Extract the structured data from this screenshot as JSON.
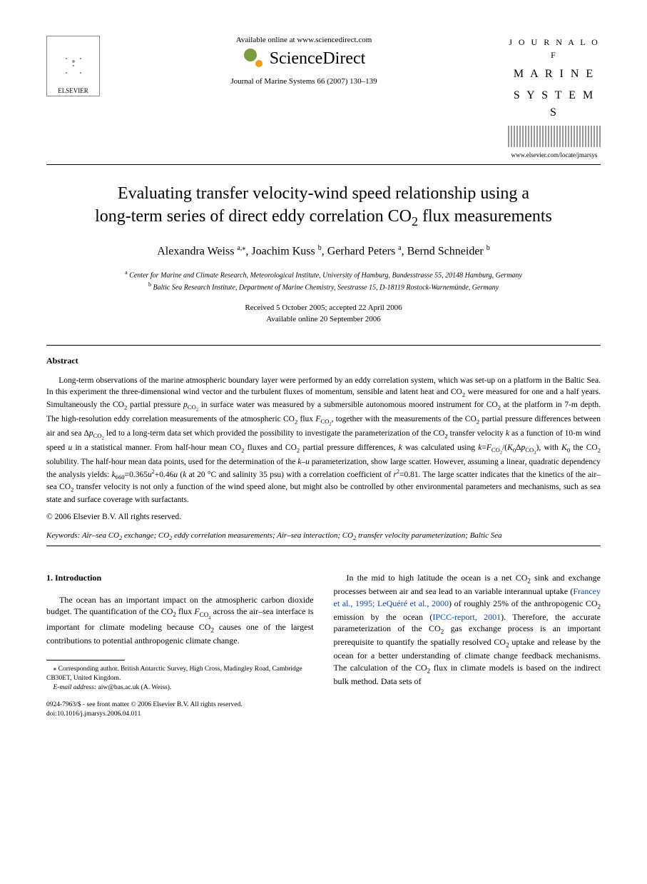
{
  "header": {
    "elsevier_label": "ELSEVIER",
    "available_online": "Available online at www.sciencedirect.com",
    "sd_brand": "ScienceDirect",
    "journal_ref": "Journal of Marine Systems 66 (2007) 130–139",
    "journal_name_l1": "J O U R N A L  O F",
    "journal_name_l2": "M A R I N E",
    "journal_name_l3": "S Y S T E M S",
    "journal_url": "www.elsevier.com/locate/jmarsys"
  },
  "title_l1": "Evaluating transfer velocity-wind speed relationship using a",
  "title_l2": "long-term series of direct eddy correlation CO",
  "title_l2_sub": "2",
  "title_l2_end": " flux measurements",
  "authors": {
    "a1": "Alexandra Weiss",
    "a1_sup": "a,",
    "a1_star": "⁎",
    "a2": "Joachim Kuss",
    "a2_sup": "b",
    "a3": "Gerhard Peters",
    "a3_sup": "a",
    "a4": "Bernd Schneider",
    "a4_sup": "b"
  },
  "affiliations": {
    "a": "Center for Marine and Climate Research, Meteorological Institute, University of Hamburg, Bundesstrasse 55, 20148 Hamburg, Germany",
    "b": "Baltic Sea Research Institute, Department of Marine Chemistry, Seestrasse 15, D-18119 Rostock-Warnemünde, Germany"
  },
  "dates": {
    "l1": "Received 5 October 2005; accepted 22 April 2006",
    "l2": "Available online 20 September 2006"
  },
  "abstract_heading": "Abstract",
  "abstract_html": "Long-term observations of the marine atmospheric boundary layer were performed by an eddy correlation system, which was set-up on a platform in the Baltic Sea. In this experiment the three-dimensional wind vector and the turbulent fluxes of momentum, sensible and latent heat and CO<sub>2</sub> were measured for one and a half years. Simultaneously the CO<sub>2</sub> partial pressure <span class=\"it\">p</span><sub>CO<sub>2</sub></sub> in surface water was measured by a submersible autonomous moored instrument for CO<sub>2</sub> at the platform in 7-m depth. The high-resolution eddy correlation measurements of the atmospheric CO<sub>2</sub> flux <span class=\"it\">F</span><sub>CO<sub>2</sub></sub>, together with the measurements of the CO<sub>2</sub> partial pressure differences between air and sea Δ<span class=\"it\">p</span><sub>CO<sub>2</sub></sub> led to a long-term data set which provided the possibility to investigate the parameterization of the CO<sub>2</sub> transfer velocity <span class=\"it\">k</span> as a function of 10-m wind speed <span class=\"it\">u</span> in a statistical manner. From half-hour mean CO<sub>2</sub> fluxes and CO<sub>2</sub> partial pressure differences, <span class=\"it\">k</span> was calculated using <span class=\"it\">k</span>=<span class=\"it\">F</span><sub>CO<sub>2</sub></sub>/(<span class=\"it\">K</span><sub>0</sub>Δ<span class=\"it\">p</span><sub>CO<sub>2</sub></sub>), with <span class=\"it\">K</span><sub>0</sub> the CO<sub>2</sub> solubility. The half-hour mean data points, used for the determination of the <span class=\"it\">k</span>–<span class=\"it\">u</span> parameterization, show large scatter. However, assuming a linear, quadratic dependency the analysis yields: <span class=\"it\">k</span><sub>660</sub>=0.365<span class=\"it\">u</span><sup>2</sup>+0.46<span class=\"it\">u</span> (<span class=\"it\">k</span> at 20 °C and salinity 35 psu) with a correlation coefficient of <span class=\"it\">r</span><sup>2</sup>=0.81. The large scatter indicates that the kinetics of the air–sea CO<sub>2</sub> transfer velocity is not only a function of the wind speed alone, but might also be controlled by other environmental parameters and mechanisms, such as sea state and surface coverage with surfactants.",
  "copyright": "© 2006 Elsevier B.V. All rights reserved.",
  "keywords_label": "Keywords:",
  "keywords_body": "Air–sea CO<sub>2</sub> exchange; CO<sub>2</sub> eddy correlation measurements; Air–sea interaction; CO<sub>2</sub> transfer velocity parameterization; Baltic Sea",
  "section1_heading": "1. Introduction",
  "col1_html": "The ocean has an important impact on the atmospheric carbon dioxide budget. The quantification of the CO<sub>2</sub> flux <span class=\"it\">F</span><sub>CO<sub>2</sub></sub> across the air–sea interface is important for climate modeling because CO<sub>2</sub> causes one of the largest contributions to potential anthropogenic climate change.",
  "col2_html": "In the mid to high latitude the ocean is a net CO<sub>2</sub> sink and exchange processes between air and sea lead to an variable interannual uptake (<span class=\"ref-link\">Francey et al., 1995; LeQuéré et al., 2000</span>) of roughly 25% of the anthropogenic CO<sub>2</sub> emission by the ocean (<span class=\"ref-link\">IPCC-report, 2001</span>). Therefore, the accurate parameterization of the CO<sub>2</sub> gas exchange process is an important prerequisite to quantify the spatially resolved CO<sub>2</sub> uptake and release by the ocean for a better understanding of climate change feedback mechanisms. The calculation of the CO<sub>2</sub> flux in climate models is based on the indirect bulk method. Data sets of",
  "footnote": {
    "corr": "⁎ Corresponding author. British Antarctic Survey, High Cross, Madingley Road, Cambridge CB30ET, United Kingdom.",
    "email_label": "E-mail address:",
    "email": "aiw@bas.ac.uk",
    "email_name": "(A. Weiss)."
  },
  "footer": {
    "l1": "0924-7963/$ - see front matter © 2006 Elsevier B.V. All rights reserved.",
    "l2": "doi:10.1016/j.jmarsys.2006.04.011"
  },
  "colors": {
    "text": "#000000",
    "link": "#0645ad",
    "bg": "#ffffff"
  }
}
